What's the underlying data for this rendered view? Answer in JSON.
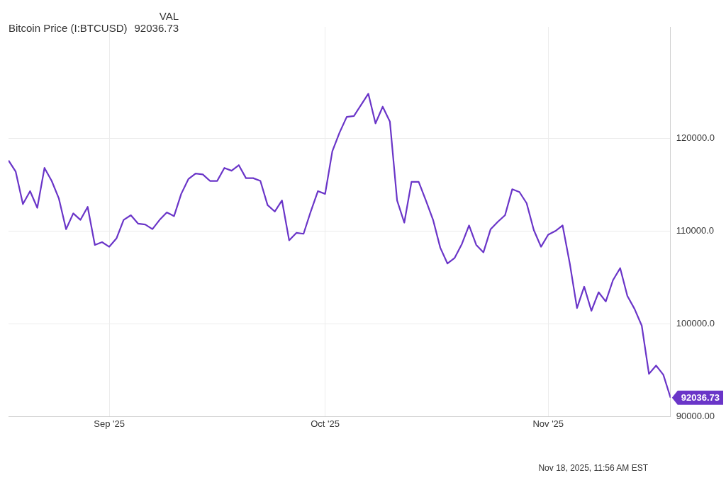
{
  "chart_data": {
    "type": "line",
    "legend_title": "VAL",
    "legend": "top left",
    "grid": true,
    "marker": "none",
    "line_style": "solid",
    "x": [
      "2025-08-18",
      "2025-08-19",
      "2025-08-20",
      "2025-08-21",
      "2025-08-22",
      "2025-08-23",
      "2025-08-24",
      "2025-08-25",
      "2025-08-26",
      "2025-08-27",
      "2025-08-28",
      "2025-08-29",
      "2025-08-30",
      "2025-08-31",
      "2025-09-01",
      "2025-09-02",
      "2025-09-03",
      "2025-09-04",
      "2025-09-05",
      "2025-09-06",
      "2025-09-07",
      "2025-09-08",
      "2025-09-09",
      "2025-09-10",
      "2025-09-11",
      "2025-09-12",
      "2025-09-13",
      "2025-09-14",
      "2025-09-15",
      "2025-09-16",
      "2025-09-17",
      "2025-09-18",
      "2025-09-19",
      "2025-09-20",
      "2025-09-21",
      "2025-09-22",
      "2025-09-23",
      "2025-09-24",
      "2025-09-25",
      "2025-09-26",
      "2025-09-27",
      "2025-09-28",
      "2025-09-29",
      "2025-09-30",
      "2025-10-01",
      "2025-10-02",
      "2025-10-03",
      "2025-10-04",
      "2025-10-05",
      "2025-10-06",
      "2025-10-07",
      "2025-10-08",
      "2025-10-09",
      "2025-10-10",
      "2025-10-11",
      "2025-10-12",
      "2025-10-13",
      "2025-10-14",
      "2025-10-15",
      "2025-10-16",
      "2025-10-17",
      "2025-10-18",
      "2025-10-19",
      "2025-10-20",
      "2025-10-21",
      "2025-10-22",
      "2025-10-23",
      "2025-10-24",
      "2025-10-25",
      "2025-10-26",
      "2025-10-27",
      "2025-10-28",
      "2025-10-29",
      "2025-10-30",
      "2025-10-31",
      "2025-11-01",
      "2025-11-02",
      "2025-11-03",
      "2025-11-04",
      "2025-11-05",
      "2025-11-06",
      "2025-11-07",
      "2025-11-08",
      "2025-11-09",
      "2025-11-10",
      "2025-11-11",
      "2025-11-12",
      "2025-11-13",
      "2025-11-14",
      "2025-11-15",
      "2025-11-16",
      "2025-11-17",
      "2025-11-18"
    ],
    "series": [
      {
        "name": "Bitcoin Price (I:BTCUSD)",
        "color": "#6a35c8",
        "values": [
          117600,
          116400,
          112900,
          114300,
          112500,
          116800,
          115400,
          113500,
          110200,
          111900,
          111200,
          112600,
          108500,
          108800,
          108300,
          109200,
          111200,
          111700,
          110800,
          110700,
          110200,
          111200,
          112000,
          111600,
          114000,
          115600,
          116200,
          116100,
          115400,
          115400,
          116800,
          116500,
          117100,
          115700,
          115700,
          115400,
          112800,
          112100,
          113300,
          109000,
          109800,
          109700,
          112100,
          114300,
          114000,
          118600,
          120600,
          122300,
          122400,
          123600,
          124800,
          121600,
          123400,
          121800,
          113300,
          110900,
          115300,
          115300,
          113300,
          111200,
          108200,
          106500,
          107100,
          108600,
          110600,
          108500,
          107700,
          110200,
          111000,
          111700,
          114500,
          114200,
          113000,
          110100,
          108300,
          109600,
          110000,
          110600,
          106500,
          101700,
          104000,
          101400,
          103400,
          102400,
          104700,
          106000,
          103000,
          101600,
          99800,
          94600,
          95500,
          94500,
          92036.73
        ],
        "value_labels": [
          null,
          null,
          null,
          null,
          null,
          null,
          null,
          null,
          null,
          null,
          null,
          null,
          null,
          null,
          null,
          null,
          null,
          null,
          null,
          null,
          null,
          null,
          null,
          null,
          null,
          null,
          null,
          null,
          null,
          null,
          null,
          null,
          null,
          null,
          null,
          null,
          null,
          null,
          null,
          null,
          null,
          null,
          null,
          null,
          null,
          null,
          null,
          null,
          null,
          null,
          null,
          null,
          null,
          null,
          null,
          null,
          null,
          null,
          null,
          null,
          null,
          null,
          null,
          null,
          null,
          null,
          null,
          null,
          null,
          null,
          null,
          null,
          null,
          null,
          null,
          null,
          null,
          null,
          null,
          null,
          null,
          null,
          null,
          null,
          null,
          null,
          null,
          null,
          null,
          null,
          null,
          null,
          "92036.73"
        ]
      }
    ],
    "xlim": [
      "2025-08-18",
      "2025-11-18"
    ],
    "xticks": [
      {
        "value": "2025-09-01",
        "label": "Sep '25"
      },
      {
        "value": "2025-10-01",
        "label": "Oct '25"
      },
      {
        "value": "2025-11-01",
        "label": "Nov '25"
      }
    ],
    "ylim": [
      90000,
      132000
    ],
    "yticks": [
      {
        "value": 90000,
        "label": "90000.00"
      },
      {
        "value": 100000,
        "label": "100000.0"
      },
      {
        "value": 110000,
        "label": "110000.0"
      },
      {
        "value": 120000,
        "label": "120000.0"
      }
    ],
    "annotations": [
      "Nov 18, 2025, 11:56 AM EST"
    ]
  }
}
